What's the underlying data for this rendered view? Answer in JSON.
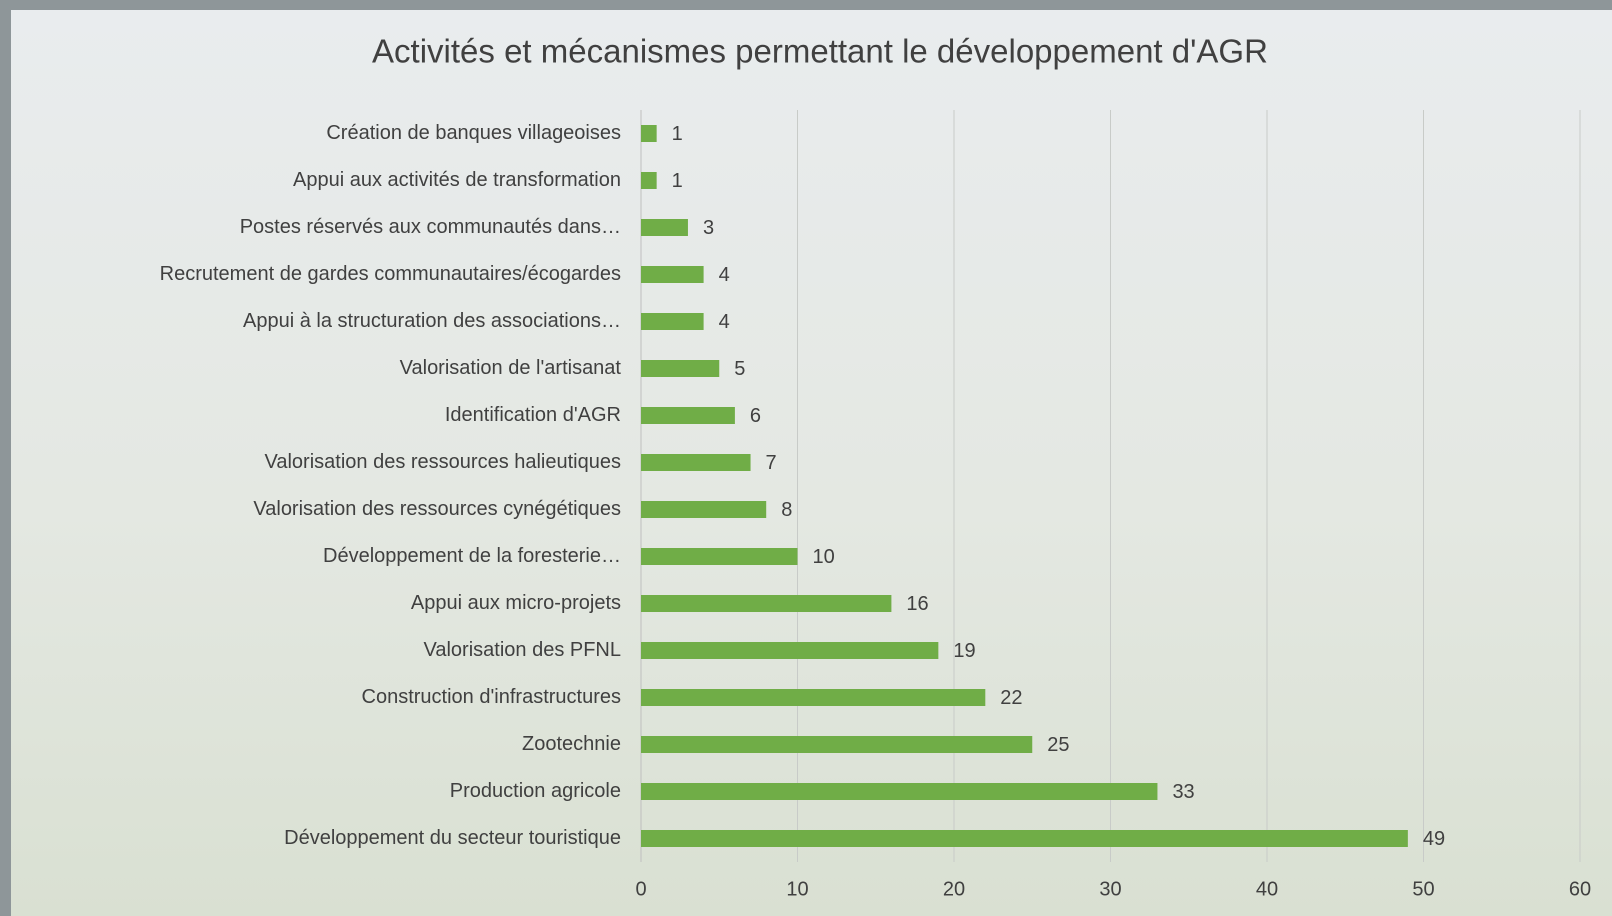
{
  "chart_data": {
    "type": "bar",
    "orientation": "horizontal",
    "title": "Activités et mécanismes permettant le développement d'AGR",
    "categories": [
      "Création de banques villageoises",
      "Appui aux activités de transformation",
      "Postes réservés aux communautés dans…",
      "Recrutement de gardes communautaires/écogardes",
      "Appui à la structuration des associations…",
      "Valorisation de l'artisanat",
      "Identification d'AGR",
      "Valorisation des ressources halieutiques",
      "Valorisation des ressources cynégétiques",
      "Développement de la foresterie…",
      "Appui aux micro-projets",
      "Valorisation des PFNL",
      "Construction d'infrastructures",
      "Zootechnie",
      "Production agricole",
      "Développement du secteur touristique"
    ],
    "values": [
      1,
      1,
      3,
      4,
      4,
      5,
      6,
      7,
      8,
      10,
      16,
      19,
      22,
      25,
      33,
      49
    ],
    "color": "#70ad47",
    "xlim": [
      0,
      60
    ],
    "xticks": [
      0,
      10,
      20,
      30,
      40,
      50,
      60
    ],
    "grid": true
  }
}
